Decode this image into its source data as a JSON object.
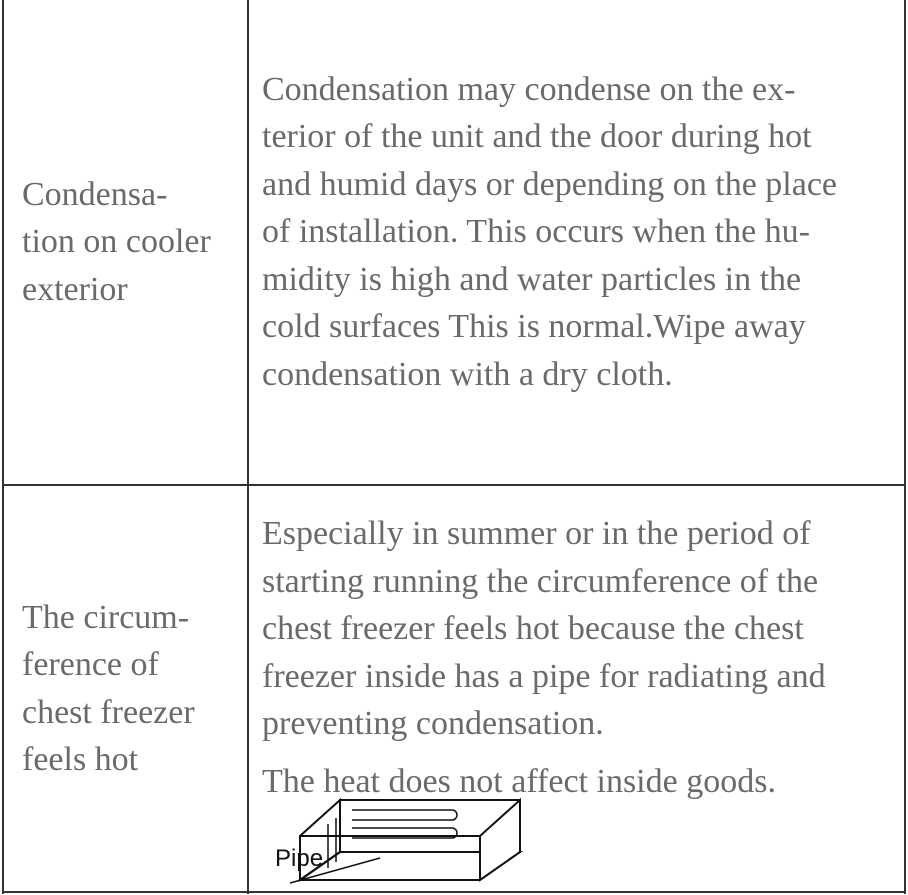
{
  "table": {
    "rows": [
      {
        "problem": [
          "Condensa-",
          "tion on cooler",
          "exterior"
        ],
        "solution": [
          [
            "Condensation may condense on the ex-",
            "terior of the unit and the door during hot",
            "and humid days or depending on the place",
            "of installation. This occurs when the hu-",
            "midity is high and water particles in the",
            "cold surfaces This is normal.Wipe away",
            "condensation with a dry cloth."
          ]
        ]
      },
      {
        "problem": [
          "The circum-",
          "ference of",
          "chest freezer",
          "feels hot"
        ],
        "solution": [
          [
            "Especially in summer or in the period of",
            "starting running the circumference of the",
            "chest freezer feels hot because the chest",
            "freezer inside has a pipe for radiating and",
            "preventing condensation."
          ],
          [
            "The heat does not affect inside goods."
          ]
        ]
      }
    ]
  },
  "figure": {
    "label": "Pipe"
  }
}
